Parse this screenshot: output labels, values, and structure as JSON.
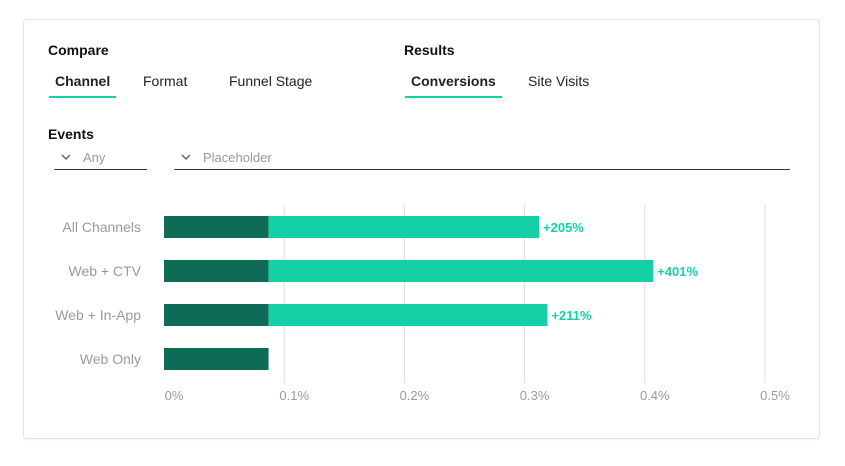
{
  "compare": {
    "title": "Compare",
    "tabs": [
      {
        "label": "Channel",
        "active": true
      },
      {
        "label": "Format",
        "active": false
      },
      {
        "label": "Funnel Stage",
        "active": false
      }
    ]
  },
  "results": {
    "title": "Results",
    "tabs": [
      {
        "label": "Conversions",
        "active": true
      },
      {
        "label": "Site Visits",
        "active": false
      }
    ]
  },
  "events": {
    "title": "Events",
    "select_any": {
      "value": "Any",
      "icon": "chevron-down-icon"
    },
    "select_placeholder": {
      "placeholder": "Placeholder",
      "icon": "chevron-down-icon"
    }
  },
  "colors": {
    "accent": "#13d1a5",
    "dark_bar": "#0e6b56",
    "light_bar": "#13d1a5",
    "axis_text": "#9a9a9a",
    "grid": "#dddddd"
  },
  "chart_data": {
    "type": "bar",
    "orientation": "horizontal",
    "stacked": true,
    "categories": [
      "All Channels",
      "Web + CTV",
      "Web + In-App",
      "Web Only"
    ],
    "series": [
      {
        "values": [
          0.087,
          0.087,
          0.087,
          0.087
        ]
      },
      {
        "values": [
          0.225,
          0.32,
          0.232,
          0
        ]
      }
    ],
    "labels": [
      "+205%",
      "+401%",
      "+211%",
      ""
    ],
    "xlim": [
      0,
      0.5
    ],
    "xticks": [
      "0%",
      "0.1%",
      "0.2%",
      "0.3%",
      "0.4%",
      "0.5%"
    ],
    "grid": true
  }
}
